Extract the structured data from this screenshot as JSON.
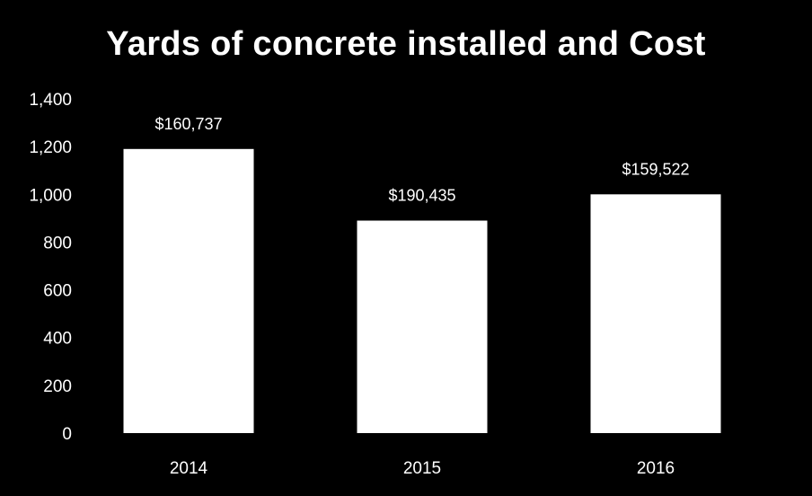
{
  "chart_data": {
    "type": "bar",
    "title": "Yards of concrete installed and Cost",
    "xlabel": "",
    "ylabel": "",
    "categories": [
      "2014",
      "2015",
      "2016"
    ],
    "series": [
      {
        "values": [
          1190,
          890,
          1000
        ]
      }
    ],
    "data_labels": [
      "$160,737",
      "$190,435",
      "$159,522"
    ],
    "yticks": [
      "0",
      "200",
      "400",
      "600",
      "800",
      "1,000",
      "1,200",
      "1,400"
    ],
    "ylim": [
      0,
      1400
    ],
    "grid": false,
    "legend": "none",
    "colors": {
      "background": "#000000",
      "bar": "#ffffff",
      "text": "#ffffff"
    }
  }
}
